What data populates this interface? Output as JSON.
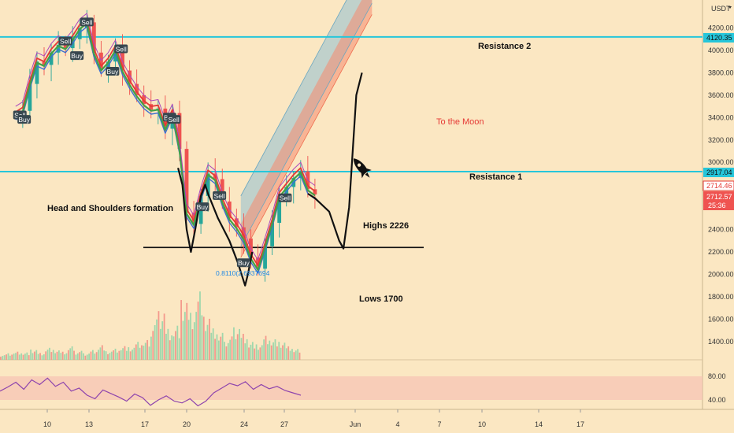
{
  "chart_data": {
    "type": "candlestick",
    "currency": "USDT",
    "y_ticks": [
      4200,
      4000,
      3800,
      3600,
      3400,
      3200,
      3000,
      2800,
      2600,
      2400,
      2200,
      2000,
      1800,
      1600,
      1400
    ],
    "x_ticks": [
      "10",
      "13",
      "17",
      "20",
      "24",
      "27",
      "Jun",
      "4",
      "7",
      "10",
      "14",
      "17"
    ],
    "rsi_ticks": [
      80,
      40
    ],
    "price_labels": {
      "resistance2": "4120.35",
      "resistance1": "2917.04",
      "last_high": "2714.46",
      "last_price": "2712.57",
      "countdown": "25:36"
    },
    "horizontal_levels": [
      {
        "name": "Resistance 2",
        "value": 4120.35,
        "color": "#26c6da"
      },
      {
        "name": "Resistance 1",
        "value": 2917.04,
        "color": "#26c6da"
      },
      {
        "name": "neckline",
        "value": 2226,
        "color": "#111111"
      }
    ],
    "annotations": {
      "resistance2": "Resistance 2",
      "resistance1": "Resistance 1",
      "moon": "To the Moon",
      "pattern": "Head and Shoulders formation",
      "highs": "Highs 2226",
      "lows": "Lows 1700",
      "fib": "0.8110(2.6937694"
    },
    "signals": [
      {
        "label": "Sell",
        "date": 11.5,
        "price": 4080
      },
      {
        "label": "Buy",
        "date": 12.3,
        "price": 3950
      },
      {
        "label": "Sell",
        "date": 13.0,
        "price": 4250
      },
      {
        "label": "Sell",
        "date": 15.4,
        "price": 4010
      },
      {
        "label": "Buy",
        "date": 14.8,
        "price": 3810
      },
      {
        "label": "Sell",
        "date": 8.3,
        "price": 3420
      },
      {
        "label": "Buy",
        "date": 8.6,
        "price": 3380
      },
      {
        "label": "Buy",
        "date": 18.8,
        "price": 3400
      },
      {
        "label": "Sell",
        "date": 19.1,
        "price": 3380
      },
      {
        "label": "Sell",
        "date": 22.3,
        "price": 2700
      },
      {
        "label": "Buy",
        "date": 21.1,
        "price": 2600
      },
      {
        "label": "Buy",
        "date": 24.0,
        "price": 2100
      },
      {
        "label": "Sell",
        "date": 26.9,
        "price": 2680
      }
    ],
    "price_series": [
      [
        8.0,
        3420
      ],
      [
        8.5,
        3460
      ],
      [
        9.0,
        3700
      ],
      [
        9.5,
        3900
      ],
      [
        10.0,
        3870
      ],
      [
        10.5,
        3980
      ],
      [
        11.0,
        4050
      ],
      [
        11.5,
        4020
      ],
      [
        12.0,
        4100
      ],
      [
        12.5,
        4200
      ],
      [
        13.0,
        4250
      ],
      [
        13.5,
        3980
      ],
      [
        14.0,
        3830
      ],
      [
        14.5,
        3900
      ],
      [
        15.0,
        4010
      ],
      [
        15.5,
        3820
      ],
      [
        16.0,
        3700
      ],
      [
        16.5,
        3600
      ],
      [
        17.0,
        3520
      ],
      [
        17.5,
        3470
      ],
      [
        18.0,
        3480
      ],
      [
        18.5,
        3300
      ],
      [
        19.0,
        3440
      ],
      [
        19.5,
        3120
      ],
      [
        20.0,
        2550
      ],
      [
        20.5,
        2450
      ],
      [
        21.0,
        2700
      ],
      [
        21.5,
        2900
      ],
      [
        22.0,
        2850
      ],
      [
        22.5,
        2650
      ],
      [
        23.0,
        2500
      ],
      [
        23.5,
        2420
      ],
      [
        24.0,
        2320
      ],
      [
        24.5,
        2150
      ],
      [
        25.0,
        2050
      ],
      [
        25.5,
        2250
      ],
      [
        26.0,
        2460
      ],
      [
        26.5,
        2700
      ],
      [
        27.0,
        2780
      ],
      [
        27.5,
        2860
      ],
      [
        28.0,
        2920
      ],
      [
        28.5,
        2760
      ],
      [
        29.0,
        2713
      ]
    ],
    "rsi_values": [
      55,
      62,
      70,
      58,
      74,
      66,
      77,
      63,
      70,
      55,
      60,
      48,
      42,
      57,
      51,
      45,
      38,
      50,
      44,
      31,
      40,
      47,
      38,
      35,
      42,
      30,
      38,
      52,
      60,
      68,
      64,
      71,
      58,
      66,
      59,
      63,
      56,
      52,
      48
    ],
    "volume_values": [
      6,
      8,
      10,
      9,
      12,
      8,
      14,
      11,
      9,
      15,
      10,
      8,
      12,
      18,
      10,
      13,
      16,
      14,
      20,
      22,
      45,
      60,
      38,
      42,
      70,
      55,
      80,
      48,
      35,
      30,
      26,
      40,
      32,
      22,
      18,
      28,
      24,
      20,
      15,
      12
    ],
    "channel": {
      "start_date": 23.8,
      "end_date": 33.0,
      "blue_band": [
        [
          2250,
          2700
        ],
        [
          4420,
          4870
        ]
      ],
      "red_band": [
        [
          2150,
          2450
        ],
        [
          4320,
          4620
        ]
      ]
    },
    "projection": [
      [
        28.5,
        2720
      ],
      [
        29.0,
        2680
      ],
      [
        30.0,
        2560
      ],
      [
        30.7,
        2300
      ],
      [
        31.0,
        2230
      ],
      [
        31.4,
        2600
      ],
      [
        31.9,
        3600
      ],
      [
        32.3,
        3800
      ]
    ],
    "hs_drawing": [
      [
        19.4,
        2950
      ],
      [
        19.7,
        2800
      ],
      [
        20.0,
        2400
      ],
      [
        20.3,
        2200
      ],
      [
        20.6,
        2400
      ],
      [
        21.0,
        2700
      ],
      [
        21.3,
        2800
      ],
      [
        21.5,
        2720
      ],
      [
        22.2,
        2500
      ],
      [
        23.0,
        2300
      ],
      [
        23.6,
        2100
      ],
      [
        24.1,
        1900
      ],
      [
        24.3,
        2000
      ],
      [
        24.6,
        2200
      ]
    ]
  }
}
